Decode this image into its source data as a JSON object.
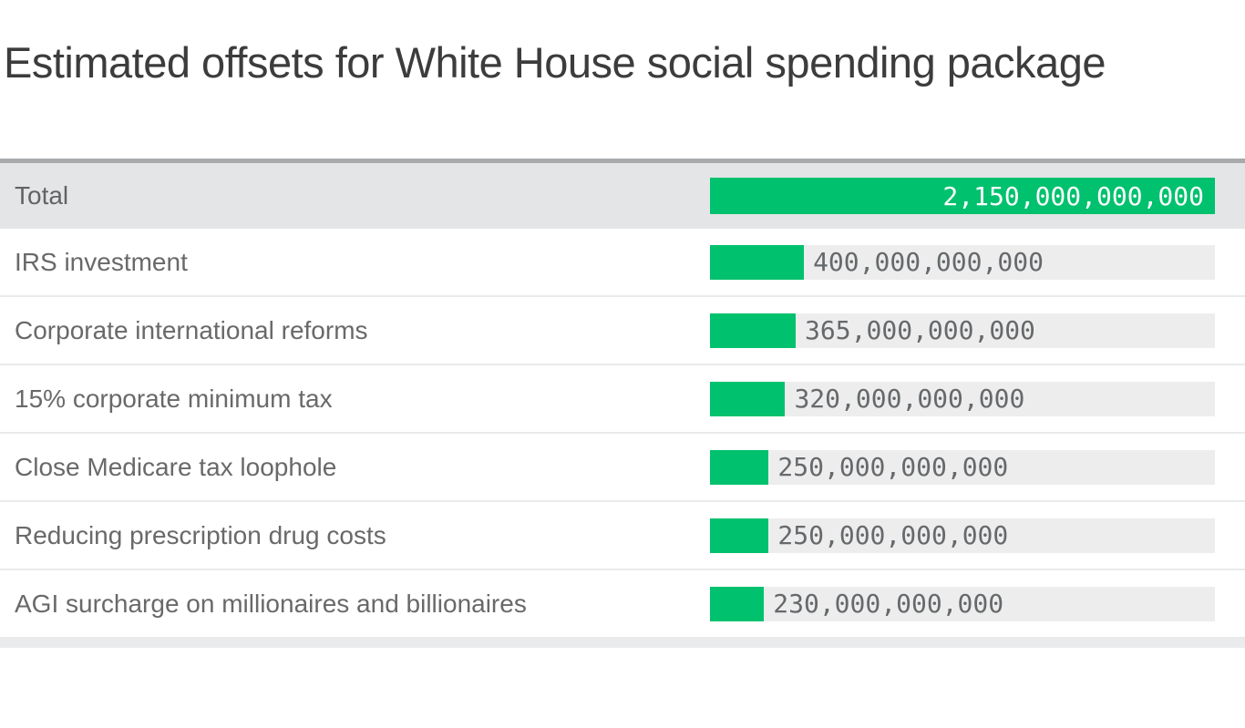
{
  "title": "Estimated offsets for White House social spending package",
  "colors": {
    "bar_green": "#00c16e",
    "bar_track_gray": "#ededed",
    "total_row_background": "#e3e5e7",
    "chart_top_border": "#a8aaac",
    "title_text": "#3c3c3c",
    "label_text": "#696969",
    "value_text_gray": "#66696c",
    "value_text_on_bar": "#ffffff"
  },
  "chart_data": {
    "type": "bar",
    "orientation": "horizontal",
    "title": "Estimated offsets for White House social spending package",
    "xlabel": "",
    "ylabel": "",
    "axis_max": 2150000000000,
    "grid": false,
    "legend": "none",
    "categories": [
      "Total",
      "IRS investment",
      "Corporate international reforms",
      "15% corporate minimum tax",
      "Close Medicare tax loophole",
      "Reducing prescription drug costs",
      "AGI surcharge on millionaires and billionaires"
    ],
    "values": [
      2150000000000,
      400000000000,
      365000000000,
      320000000000,
      250000000000,
      250000000000,
      230000000000
    ],
    "value_labels": [
      "2,150,000,000,000",
      "400,000,000,000",
      "365,000,000,000",
      "320,000,000,000",
      "250,000,000,000",
      "250,000,000,000",
      "230,000,000,000"
    ],
    "total_row_index": 0
  }
}
